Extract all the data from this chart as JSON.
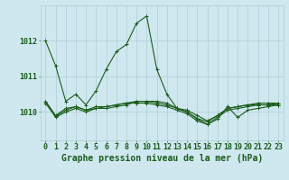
{
  "title": "Graphe pression niveau de la mer (hPa)",
  "background_color": "#cfe8f0",
  "line_color": "#1a5c1a",
  "grid_color": "#b0ccd4",
  "xlim": [
    -0.5,
    23.5
  ],
  "ylim": [
    1009.2,
    1013.0
  ],
  "yticks": [
    1010,
    1011,
    1012
  ],
  "xticks": [
    0,
    1,
    2,
    3,
    4,
    5,
    6,
    7,
    8,
    9,
    10,
    11,
    12,
    13,
    14,
    15,
    16,
    17,
    18,
    19,
    20,
    21,
    22,
    23
  ],
  "series": [
    [
      1012.0,
      1011.3,
      1010.3,
      1010.5,
      1010.2,
      1010.6,
      1011.2,
      1011.7,
      1011.9,
      1012.5,
      1012.7,
      1011.2,
      1010.5,
      1010.1,
      1010.0,
      1009.8,
      1009.65,
      1009.8,
      1010.15,
      1009.85,
      1010.05,
      1010.1,
      1010.15,
      1010.2
    ],
    [
      1010.3,
      1009.9,
      1010.1,
      1010.15,
      1010.05,
      1010.1,
      1010.1,
      1010.15,
      1010.2,
      1010.3,
      1010.3,
      1010.3,
      1010.25,
      1010.1,
      1010.05,
      1009.9,
      1009.75,
      1009.9,
      1010.1,
      1010.15,
      1010.2,
      1010.2,
      1010.2,
      1010.2
    ],
    [
      1010.25,
      1009.85,
      1010.0,
      1010.1,
      1010.0,
      1010.1,
      1010.15,
      1010.2,
      1010.25,
      1010.25,
      1010.25,
      1010.2,
      1010.15,
      1010.05,
      1009.95,
      1009.75,
      1009.65,
      1009.85,
      1010.05,
      1010.1,
      1010.15,
      1010.2,
      1010.2,
      1010.25
    ],
    [
      1010.3,
      1009.88,
      1010.05,
      1010.15,
      1010.05,
      1010.15,
      1010.15,
      1010.2,
      1010.25,
      1010.3,
      1010.3,
      1010.25,
      1010.2,
      1010.1,
      1010.0,
      1009.82,
      1009.72,
      1009.9,
      1010.1,
      1010.15,
      1010.2,
      1010.25,
      1010.25,
      1010.25
    ]
  ],
  "marker": "+",
  "markersize": 3,
  "linewidth": 0.8,
  "fontsize_label": 7,
  "fontsize_tick": 6
}
